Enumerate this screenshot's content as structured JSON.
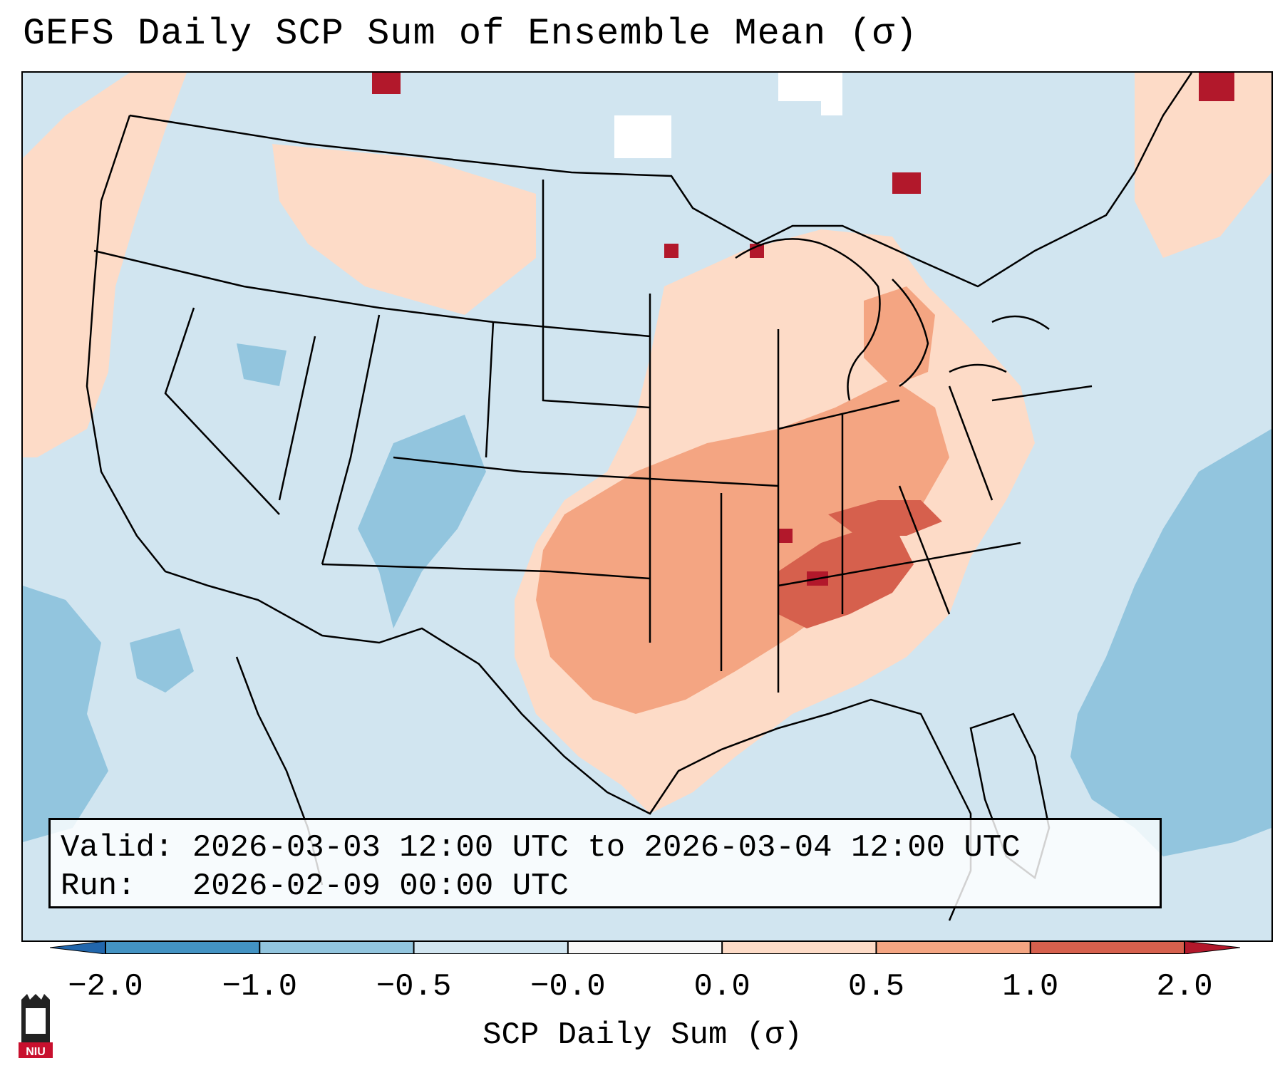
{
  "title": "GEFS Daily SCP Sum of Ensemble Mean (σ)",
  "valid_label": "Valid:",
  "valid_value": "2026-03-03 12:00 UTC to 2026-03-04 12:00 UTC",
  "run_label": "Run:",
  "run_value": "2026-02-09 00:00 UTC",
  "colorbar": {
    "label": "SCP Daily Sum (σ)",
    "ticks": [
      "−2.0",
      "−1.0",
      "−0.5",
      "−0.0",
      "0.0",
      "0.5",
      "1.0",
      "2.0"
    ],
    "colors": [
      "#4393c3",
      "#92c5de",
      "#d1e5f0",
      "#f7f7f7",
      "#fddbc7",
      "#f4a582",
      "#d6604d"
    ],
    "under_color": "#2166ac",
    "over_color": "#b2182b"
  },
  "logo": {
    "text": "NIU",
    "icon": "university-logo-icon"
  }
}
